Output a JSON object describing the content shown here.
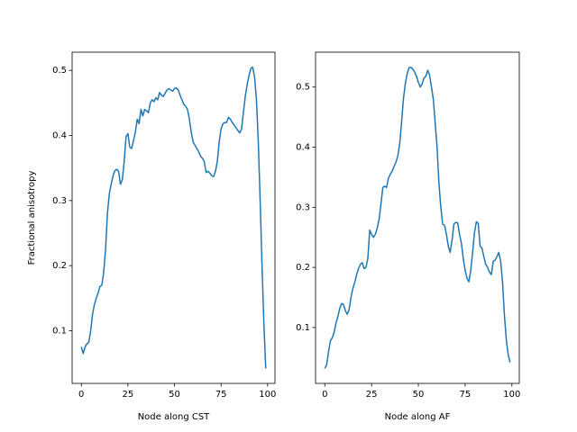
{
  "chart_data": [
    {
      "type": "line",
      "xlabel": "Node along CST",
      "ylabel": "Fractional anisotropy",
      "color": "#1f77b4",
      "x": [
        0,
        1,
        2,
        3,
        4,
        5,
        6,
        7,
        8,
        9,
        10,
        11,
        12,
        13,
        14,
        15,
        16,
        17,
        18,
        19,
        20,
        21,
        22,
        23,
        24,
        25,
        26,
        27,
        28,
        29,
        30,
        31,
        32,
        33,
        34,
        35,
        36,
        37,
        38,
        39,
        40,
        41,
        42,
        43,
        44,
        45,
        46,
        47,
        48,
        49,
        50,
        51,
        52,
        53,
        54,
        55,
        56,
        57,
        58,
        59,
        60,
        61,
        62,
        63,
        64,
        65,
        66,
        67,
        68,
        69,
        70,
        71,
        72,
        73,
        74,
        75,
        76,
        77,
        78,
        79,
        80,
        81,
        82,
        83,
        84,
        85,
        86,
        87,
        88,
        89,
        90,
        91,
        92,
        93,
        94,
        95,
        96,
        97,
        98,
        99
      ],
      "values": [
        0.075,
        0.065,
        0.075,
        0.08,
        0.082,
        0.1,
        0.125,
        0.14,
        0.15,
        0.158,
        0.168,
        0.17,
        0.19,
        0.225,
        0.28,
        0.31,
        0.325,
        0.338,
        0.346,
        0.348,
        0.345,
        0.325,
        0.332,
        0.36,
        0.398,
        0.403,
        0.382,
        0.38,
        0.392,
        0.405,
        0.425,
        0.418,
        0.44,
        0.43,
        0.44,
        0.438,
        0.435,
        0.45,
        0.455,
        0.452,
        0.458,
        0.455,
        0.466,
        0.462,
        0.46,
        0.465,
        0.47,
        0.472,
        0.47,
        0.468,
        0.472,
        0.473,
        0.47,
        0.462,
        0.455,
        0.448,
        0.445,
        0.44,
        0.425,
        0.405,
        0.39,
        0.385,
        0.38,
        0.375,
        0.368,
        0.365,
        0.36,
        0.343,
        0.345,
        0.342,
        0.338,
        0.337,
        0.345,
        0.36,
        0.39,
        0.41,
        0.418,
        0.42,
        0.42,
        0.428,
        0.425,
        0.42,
        0.416,
        0.412,
        0.408,
        0.404,
        0.41,
        0.435,
        0.46,
        0.478,
        0.492,
        0.503,
        0.505,
        0.49,
        0.455,
        0.39,
        0.3,
        0.2,
        0.11,
        0.042
      ],
      "xlim": [
        -4.95,
        103.95
      ],
      "xticks": [
        0,
        25,
        50,
        75,
        100
      ],
      "ylim": [
        0.019,
        0.528
      ],
      "yticks": [
        0.1,
        0.2,
        0.3,
        0.4,
        0.5
      ]
    },
    {
      "type": "line",
      "xlabel": "Node along AF",
      "color": "#1f77b4",
      "x": [
        0,
        1,
        2,
        3,
        4,
        5,
        6,
        7,
        8,
        9,
        10,
        11,
        12,
        13,
        14,
        15,
        16,
        17,
        18,
        19,
        20,
        21,
        22,
        23,
        24,
        25,
        26,
        27,
        28,
        29,
        30,
        31,
        32,
        33,
        34,
        35,
        36,
        37,
        38,
        39,
        40,
        41,
        42,
        43,
        44,
        45,
        46,
        47,
        48,
        49,
        50,
        51,
        52,
        53,
        54,
        55,
        56,
        57,
        58,
        59,
        60,
        61,
        62,
        63,
        64,
        65,
        66,
        67,
        68,
        69,
        70,
        71,
        72,
        73,
        74,
        75,
        76,
        77,
        78,
        79,
        80,
        81,
        82,
        83,
        84,
        85,
        86,
        87,
        88,
        89,
        90,
        91,
        92,
        93,
        94,
        95,
        96,
        97,
        98,
        99
      ],
      "values": [
        0.032,
        0.038,
        0.06,
        0.078,
        0.083,
        0.092,
        0.108,
        0.118,
        0.132,
        0.14,
        0.138,
        0.128,
        0.122,
        0.13,
        0.15,
        0.165,
        0.175,
        0.188,
        0.198,
        0.205,
        0.208,
        0.198,
        0.2,
        0.215,
        0.262,
        0.255,
        0.25,
        0.255,
        0.265,
        0.28,
        0.305,
        0.333,
        0.335,
        0.333,
        0.348,
        0.355,
        0.36,
        0.368,
        0.375,
        0.385,
        0.405,
        0.44,
        0.48,
        0.505,
        0.522,
        0.532,
        0.533,
        0.53,
        0.525,
        0.518,
        0.508,
        0.5,
        0.505,
        0.515,
        0.518,
        0.528,
        0.52,
        0.5,
        0.48,
        0.44,
        0.4,
        0.34,
        0.3,
        0.272,
        0.27,
        0.255,
        0.235,
        0.225,
        0.245,
        0.272,
        0.275,
        0.274,
        0.255,
        0.24,
        0.215,
        0.195,
        0.182,
        0.176,
        0.195,
        0.225,
        0.258,
        0.276,
        0.273,
        0.235,
        0.232,
        0.218,
        0.205,
        0.2,
        0.192,
        0.188,
        0.21,
        0.212,
        0.218,
        0.225,
        0.21,
        0.175,
        0.12,
        0.08,
        0.055,
        0.042
      ],
      "xlim": [
        -4.95,
        103.95
      ],
      "xticks": [
        0,
        25,
        50,
        75,
        100
      ],
      "ylim": [
        0.007,
        0.558
      ],
      "yticks": [
        0.1,
        0.2,
        0.3,
        0.4,
        0.5
      ]
    }
  ]
}
